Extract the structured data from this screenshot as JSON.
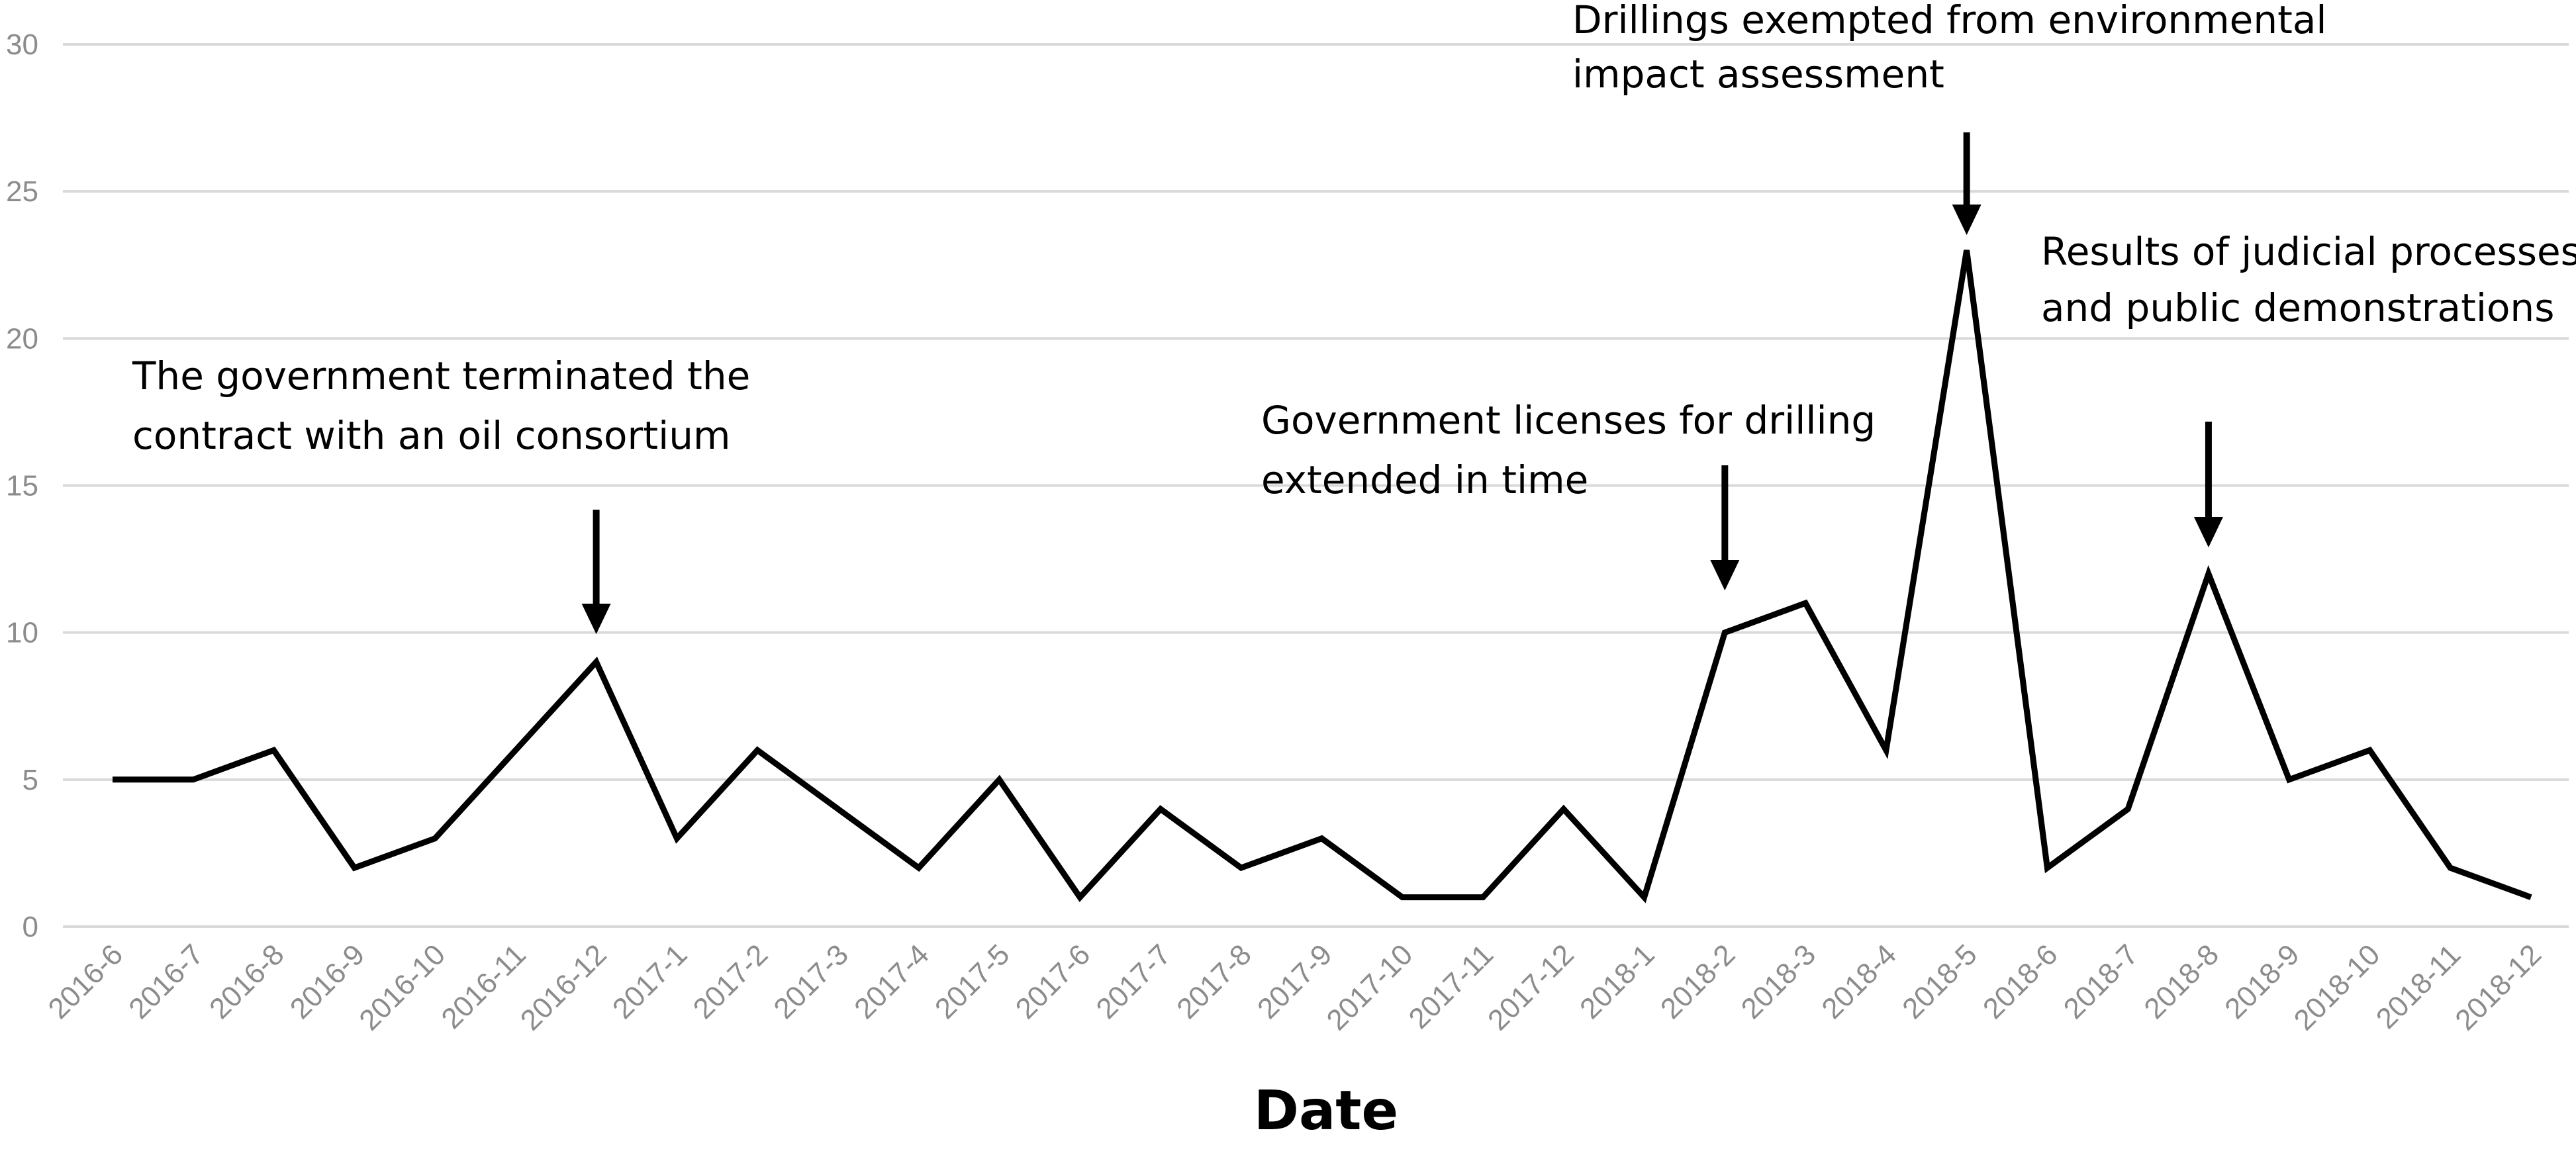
{
  "chart_data": {
    "type": "line",
    "title": "",
    "xlabel": "Date",
    "ylabel": "",
    "ylim": [
      0,
      30
    ],
    "yticks": [
      0,
      5,
      10,
      15,
      20,
      25,
      30
    ],
    "grid": "horizontal",
    "legend": "none",
    "categories": [
      "2016-6",
      "2016-7",
      "2016-8",
      "2016-9",
      "2016-10",
      "2016-11",
      "2016-12",
      "2017-1",
      "2017-2",
      "2017-3",
      "2017-4",
      "2017-5",
      "2017-6",
      "2017-7",
      "2017-8",
      "2017-9",
      "2017-10",
      "2017-11",
      "2017-12",
      "2018-1",
      "2018-2",
      "2018-3",
      "2018-4",
      "2018-5",
      "2018-6",
      "2018-7",
      "2018-8",
      "2018-9",
      "2018-10",
      "2018-11",
      "2018-12"
    ],
    "series": [
      {
        "values": [
          5,
          5,
          6,
          2,
          3,
          6,
          9,
          3,
          6,
          4,
          2,
          5,
          1,
          4,
          2,
          3,
          1,
          1,
          4,
          1,
          10,
          11,
          6,
          23,
          2,
          4,
          12,
          5,
          6,
          2,
          1
        ]
      }
    ],
    "annotations": [
      {
        "category": "2016-12",
        "lines": [
          "The government terminated the",
          "contract with an oil consortium"
        ]
      },
      {
        "category": "2018-2",
        "lines": [
          "Government licenses for drilling",
          "extended in time"
        ]
      },
      {
        "category": "2018-5",
        "lines": [
          "Drillings exempted from environmental",
          "impact assessment"
        ]
      },
      {
        "category": "2018-8",
        "lines": [
          "Results of judicial processes",
          "and public demonstrations"
        ]
      }
    ],
    "colors": {
      "line": "#000000",
      "grid": "#d9d9d9",
      "tick": "#8c8c8c"
    }
  }
}
